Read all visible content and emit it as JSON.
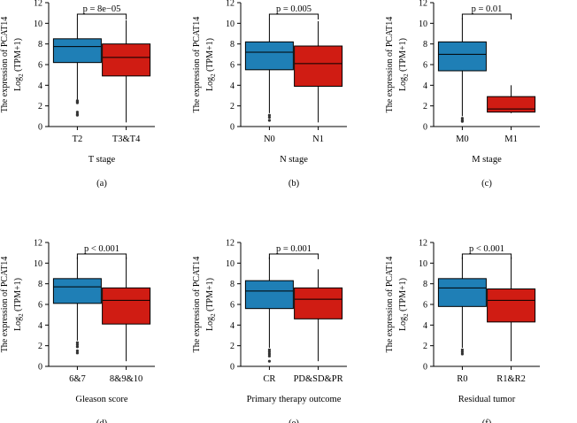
{
  "colors": {
    "box_low": "#1f7fb6",
    "box_high": "#d01c13",
    "axis": "#000000",
    "outlier": "#333333"
  },
  "shared": {
    "ylabel_line1": "The expression of PCAT14",
    "ylabel_line2_prefix": "Log",
    "ylabel_line2_sub": "2",
    "ylabel_line2_suffix": " (TPM+1)"
  },
  "chart_data": [
    {
      "type": "boxplot",
      "panel_label": "(a)",
      "xlabel": "T stage",
      "pvalue": "p = 8e−05",
      "ylim": [
        0,
        12
      ],
      "yticks": [
        0,
        2,
        4,
        6,
        8,
        10,
        12
      ],
      "groups": [
        {
          "name": "T2",
          "q1": 6.2,
          "median": 7.75,
          "q3": 8.5,
          "whisker_low": 2.6,
          "whisker_high": 10.4,
          "outliers": [
            2.5,
            2.4,
            2.3,
            1.4,
            1.2,
            1.1
          ]
        },
        {
          "name": "T3&T4",
          "q1": 4.9,
          "median": 6.7,
          "q3": 8.0,
          "whisker_low": 0.4,
          "whisker_high": 10.3,
          "outliers": []
        }
      ]
    },
    {
      "type": "boxplot",
      "panel_label": "(b)",
      "xlabel": "N stage",
      "pvalue": "p = 0.005",
      "ylim": [
        0,
        12
      ],
      "yticks": [
        0,
        2,
        4,
        6,
        8,
        10,
        12
      ],
      "groups": [
        {
          "name": "N0",
          "q1": 5.5,
          "median": 7.2,
          "q3": 8.2,
          "whisker_low": 1.3,
          "whisker_high": 10.4,
          "outliers": [
            1.1,
            0.9,
            0.6
          ]
        },
        {
          "name": "N1",
          "q1": 3.9,
          "median": 6.1,
          "q3": 7.8,
          "whisker_low": 0.4,
          "whisker_high": 10.2,
          "outliers": []
        }
      ]
    },
    {
      "type": "boxplot",
      "panel_label": "(c)",
      "xlabel": "M stage",
      "pvalue": "p = 0.01",
      "ylim": [
        0,
        12
      ],
      "yticks": [
        0,
        2,
        4,
        6,
        8,
        10,
        12
      ],
      "groups": [
        {
          "name": "M0",
          "q1": 5.4,
          "median": 7.0,
          "q3": 8.2,
          "whisker_low": 1.0,
          "whisker_high": 10.5,
          "outliers": [
            0.8,
            0.6,
            0.5
          ]
        },
        {
          "name": "M1",
          "q1": 1.4,
          "median": 1.7,
          "q3": 2.9,
          "whisker_low": 1.3,
          "whisker_high": 4.0,
          "outliers": []
        }
      ]
    },
    {
      "type": "boxplot",
      "panel_label": "(d)",
      "xlabel": "Gleason score",
      "pvalue": "p < 0.001",
      "ylim": [
        0,
        12
      ],
      "yticks": [
        0,
        2,
        4,
        6,
        8,
        10,
        12
      ],
      "groups": [
        {
          "name": "6&7",
          "q1": 6.1,
          "median": 7.7,
          "q3": 8.5,
          "whisker_low": 2.5,
          "whisker_high": 10.6,
          "outliers": [
            2.3,
            2.1,
            1.9,
            1.5,
            1.3
          ]
        },
        {
          "name": "8&9&10",
          "q1": 4.1,
          "median": 6.4,
          "q3": 7.6,
          "whisker_low": 0.5,
          "whisker_high": 10.6,
          "outliers": []
        }
      ]
    },
    {
      "type": "boxplot",
      "panel_label": "(e)",
      "xlabel": "Primary therapy outcome",
      "pvalue": "p = 0.001",
      "ylim": [
        0,
        12
      ],
      "yticks": [
        0,
        2,
        4,
        6,
        8,
        10,
        12
      ],
      "groups": [
        {
          "name": "CR",
          "q1": 5.6,
          "median": 7.3,
          "q3": 8.3,
          "whisker_low": 1.8,
          "whisker_high": 10.6,
          "outliers": [
            1.6,
            1.4,
            1.2,
            1.0,
            0.5
          ]
        },
        {
          "name": "PD&SD&PR",
          "q1": 4.6,
          "median": 6.5,
          "q3": 7.6,
          "whisker_low": 0.5,
          "whisker_high": 9.4,
          "outliers": []
        }
      ]
    },
    {
      "type": "boxplot",
      "panel_label": "(f)",
      "xlabel": "Residual tumor",
      "pvalue": "p < 0.001",
      "ylim": [
        0,
        12
      ],
      "yticks": [
        0,
        2,
        4,
        6,
        8,
        10,
        12
      ],
      "groups": [
        {
          "name": "R0",
          "q1": 5.8,
          "median": 7.6,
          "q3": 8.5,
          "whisker_low": 1.8,
          "whisker_high": 10.6,
          "outliers": [
            1.6,
            1.4,
            1.2
          ]
        },
        {
          "name": "R1&R2",
          "q1": 4.3,
          "median": 6.4,
          "q3": 7.5,
          "whisker_low": 0.5,
          "whisker_high": 10.6,
          "outliers": []
        }
      ]
    }
  ]
}
